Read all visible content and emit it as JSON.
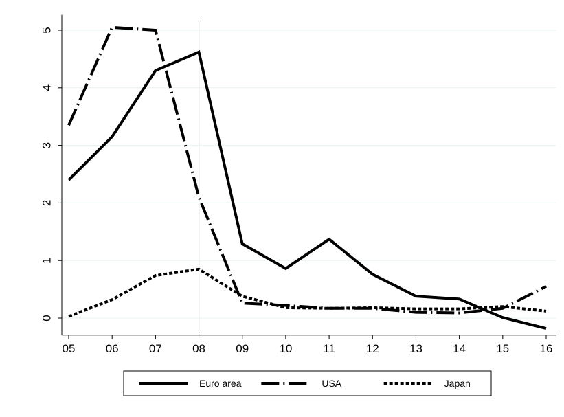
{
  "chart_data": {
    "type": "line",
    "title": "",
    "xlabel": "",
    "ylabel": "",
    "categories": [
      "05",
      "06",
      "07",
      "08",
      "09",
      "10",
      "11",
      "12",
      "13",
      "14",
      "15",
      "16"
    ],
    "ylim": [
      -0.2,
      5.1
    ],
    "yticks": [
      0,
      1,
      2,
      3,
      4,
      5
    ],
    "grid": "horizontal",
    "reference_line_x": "08",
    "legend_position": "bottom",
    "series": [
      {
        "name": "Euro area",
        "style": "solid",
        "color": "#000000",
        "values": [
          2.4,
          3.15,
          4.3,
          4.62,
          1.29,
          0.86,
          1.37,
          0.76,
          0.38,
          0.33,
          0.01,
          -0.18
        ]
      },
      {
        "name": "USA",
        "style": "dash-dot",
        "color": "#000000",
        "values": [
          3.35,
          5.05,
          5.0,
          2.1,
          0.26,
          0.22,
          0.17,
          0.17,
          0.1,
          0.09,
          0.17,
          0.55
        ]
      },
      {
        "name": "Japan",
        "style": "dotted",
        "color": "#000000",
        "values": [
          0.03,
          0.32,
          0.74,
          0.85,
          0.38,
          0.18,
          0.17,
          0.18,
          0.16,
          0.16,
          0.2,
          0.12
        ]
      }
    ]
  }
}
